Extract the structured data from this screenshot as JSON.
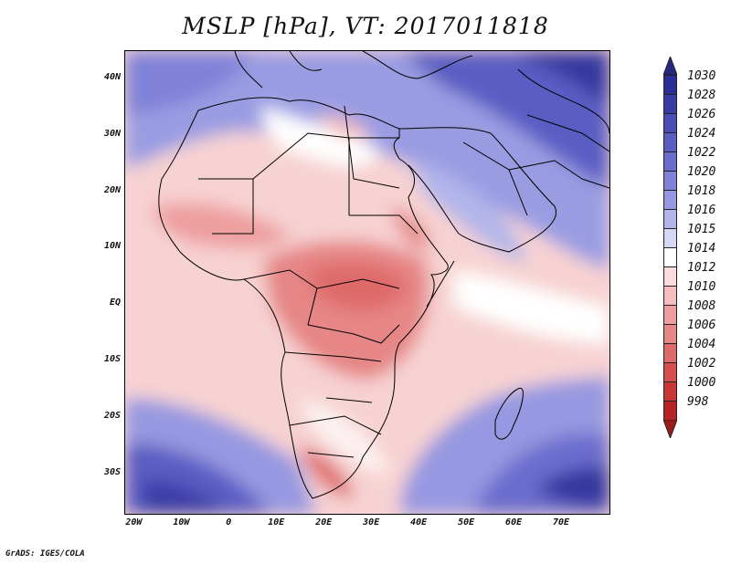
{
  "title": "MSLP [hPa], VT: 2017011818",
  "x_ticks": [
    {
      "lon": -20,
      "label": "20W"
    },
    {
      "lon": -10,
      "label": "10W"
    },
    {
      "lon": 0,
      "label": "0"
    },
    {
      "lon": 10,
      "label": "10E"
    },
    {
      "lon": 20,
      "label": "20E"
    },
    {
      "lon": 30,
      "label": "30E"
    },
    {
      "lon": 40,
      "label": "40E"
    },
    {
      "lon": 50,
      "label": "50E"
    },
    {
      "lon": 60,
      "label": "60E"
    },
    {
      "lon": 70,
      "label": "70E"
    }
  ],
  "y_ticks": [
    {
      "lat": 40,
      "label": "40N"
    },
    {
      "lat": 30,
      "label": "30N"
    },
    {
      "lat": 20,
      "label": "20N"
    },
    {
      "lat": 10,
      "label": "10N"
    },
    {
      "lat": 0,
      "label": "EQ"
    },
    {
      "lat": -10,
      "label": "10S"
    },
    {
      "lat": -20,
      "label": "20S"
    },
    {
      "lat": -30,
      "label": "30S"
    }
  ],
  "extent": {
    "lon_min": -22,
    "lon_max": 80,
    "lat_min": -37,
    "lat_max": 45
  },
  "colorbar": [
    {
      "label": "1030",
      "color": "#2a2f98"
    },
    {
      "label": "1028",
      "color": "#3a3ca6"
    },
    {
      "label": "1026",
      "color": "#4b4cb5"
    },
    {
      "label": "1024",
      "color": "#5a5dc2"
    },
    {
      "label": "1022",
      "color": "#6a6dcd"
    },
    {
      "label": "1020",
      "color": "#7f82d8"
    },
    {
      "label": "1018",
      "color": "#9698e1"
    },
    {
      "label": "1016",
      "color": "#b2b5ea"
    },
    {
      "label": "1015",
      "color": "#d6d7f4"
    },
    {
      "label": "1014",
      "color": "#ffffff"
    },
    {
      "label": "1012",
      "color": "#fbdcdc"
    },
    {
      "label": "1010",
      "color": "#f5bdbd"
    },
    {
      "label": "1008",
      "color": "#ee9e9e"
    },
    {
      "label": "1006",
      "color": "#e68686"
    },
    {
      "label": "1004",
      "color": "#df6a6a"
    },
    {
      "label": "1002",
      "color": "#d65050"
    },
    {
      "label": "1000",
      "color": "#c93636"
    },
    {
      "label": "998",
      "color": "#b52424"
    }
  ],
  "cb_top_color": "#25287e",
  "cb_bottom_color": "#9b1a1a",
  "credit": "GrADS: IGES/COLA"
}
